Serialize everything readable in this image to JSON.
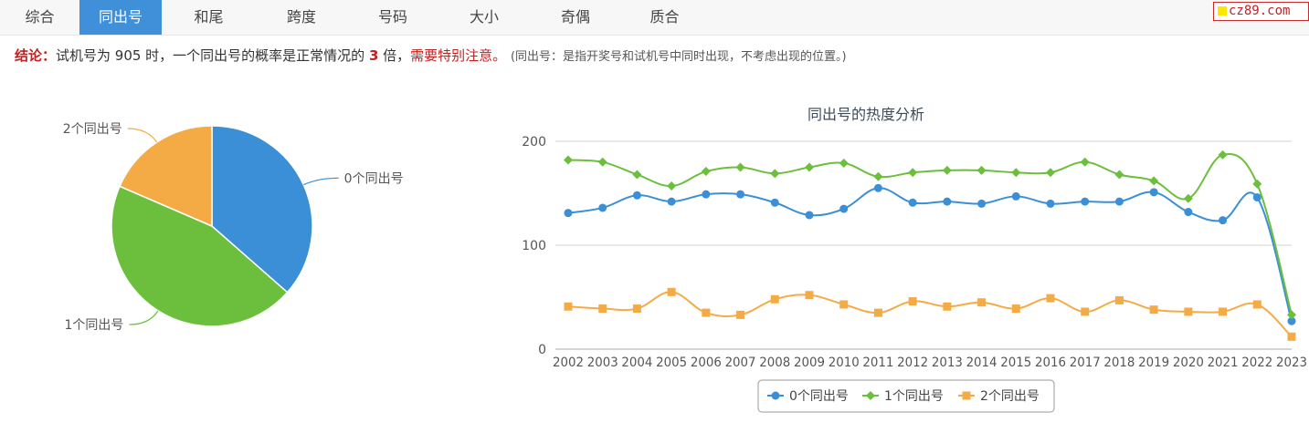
{
  "tabs": [
    "综合",
    "同出号",
    "和尾",
    "跨度",
    "号码",
    "大小",
    "奇偶",
    "质合"
  ],
  "active_tab_index": 1,
  "site_badge": "cz89.com",
  "conclusion": {
    "label": "结论：",
    "text1": "试机号为 905 时，一个同出号的概率是正常情况的 ",
    "multiple": "3",
    "text2": " 倍，",
    "warning": "需要特别注意。",
    "note": "(同出号：是指开奖号和试机号中同时出现，不考虑出现的位置。)"
  },
  "colors": {
    "series0": "#3a8fd6",
    "series1": "#6cbf3c",
    "series2": "#f5ab45",
    "active_tab": "#3f90d9",
    "red": "#c32121"
  },
  "chart_data": [
    {
      "type": "pie",
      "labels": [
        "0个同出号",
        "1个同出号",
        "2个同出号"
      ],
      "values": [
        36.5,
        45.0,
        18.5
      ]
    },
    {
      "type": "line",
      "title": "同出号的热度分析",
      "categories": [
        "2002",
        "2003",
        "2004",
        "2005",
        "2006",
        "2007",
        "2008",
        "2009",
        "2010",
        "2011",
        "2012",
        "2013",
        "2014",
        "2015",
        "2016",
        "2017",
        "2018",
        "2019",
        "2020",
        "2021",
        "2022",
        "2023"
      ],
      "ylim": [
        0,
        200
      ],
      "yticks": [
        0,
        100,
        200
      ],
      "grid": true,
      "legend": "bottom-center",
      "series": [
        {
          "name": "0个同出号",
          "marker": "circle",
          "values": [
            131,
            136,
            148,
            142,
            149,
            149,
            141,
            129,
            135,
            155,
            141,
            142,
            140,
            147,
            140,
            142,
            142,
            151,
            132,
            124,
            146,
            27
          ]
        },
        {
          "name": "1个同出号",
          "marker": "diamond",
          "values": [
            182,
            180,
            168,
            157,
            171,
            175,
            169,
            175,
            179,
            166,
            170,
            172,
            172,
            170,
            170,
            180,
            168,
            162,
            145,
            187,
            159,
            33
          ]
        },
        {
          "name": "2个同出号",
          "marker": "square",
          "values": [
            41,
            39,
            39,
            55,
            35,
            33,
            48,
            52,
            43,
            35,
            46,
            41,
            45,
            39,
            49,
            36,
            47,
            38,
            36,
            36,
            43,
            12
          ]
        }
      ]
    }
  ]
}
